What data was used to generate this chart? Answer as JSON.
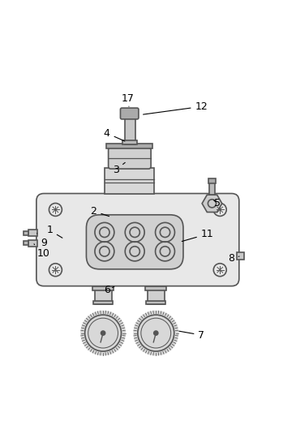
{
  "background_color": "#ffffff",
  "line_color": "#555555",
  "label_color": "#000000",
  "fig_width": 3.65,
  "fig_height": 5.35,
  "annotations": [
    [
      "1",
      [
        0.165,
        0.455
      ],
      [
        0.215,
        0.425
      ]
    ],
    [
      "2",
      [
        0.315,
        0.52
      ],
      [
        0.375,
        0.5
      ]
    ],
    [
      "3",
      [
        0.39,
        0.66
      ],
      [
        0.428,
        0.69
      ]
    ],
    [
      "4",
      [
        0.36,
        0.785
      ],
      [
        0.428,
        0.755
      ]
    ],
    [
      "5",
      [
        0.735,
        0.548
      ],
      [
        0.718,
        0.562
      ]
    ],
    [
      "6",
      [
        0.36,
        0.252
      ],
      [
        0.385,
        0.263
      ]
    ],
    [
      "7",
      [
        0.682,
        0.098
      ],
      [
        0.598,
        0.113
      ]
    ],
    [
      "8",
      [
        0.782,
        0.358
      ],
      [
        0.818,
        0.368
      ]
    ],
    [
      "9",
      [
        0.145,
        0.412
      ],
      [
        0.122,
        0.444
      ]
    ],
    [
      "10",
      [
        0.145,
        0.375
      ],
      [
        0.112,
        0.408
      ]
    ],
    [
      "11",
      [
        0.702,
        0.442
      ],
      [
        0.608,
        0.415
      ]
    ],
    [
      "12",
      [
        0.682,
        0.876
      ],
      [
        0.476,
        0.848
      ]
    ],
    [
      "17",
      [
        0.432,
        0.902
      ],
      [
        0.435,
        0.876
      ]
    ]
  ]
}
